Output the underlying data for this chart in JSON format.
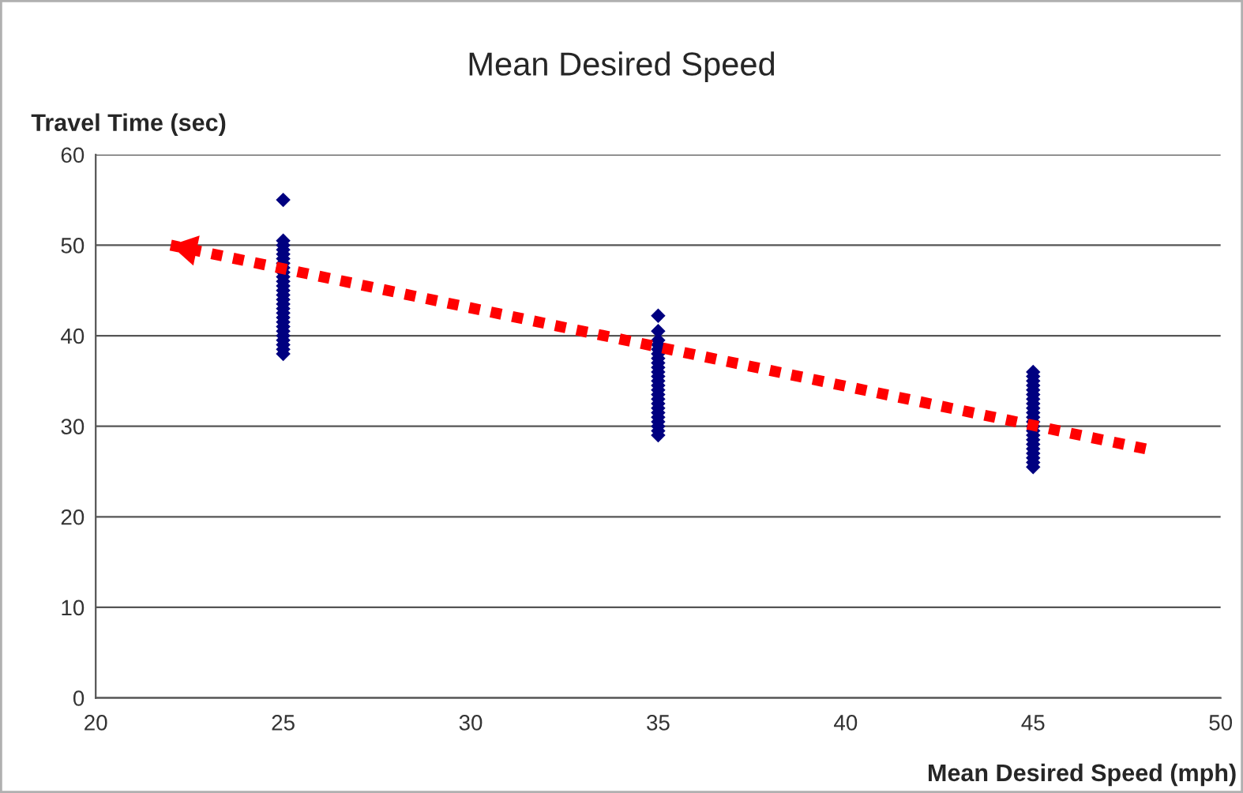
{
  "chart_data": {
    "type": "scatter",
    "title": "Mean Desired Speed",
    "xlabel": "Mean Desired Speed (mph)",
    "ylabel": "Travel Time (sec)",
    "xlim": [
      20,
      50
    ],
    "xticks": [
      20,
      25,
      30,
      35,
      40,
      45,
      50
    ],
    "ylim": [
      0,
      60
    ],
    "yticks": [
      0,
      10,
      20,
      30,
      40,
      50,
      60
    ],
    "grid": "y",
    "legend": false,
    "series": [
      {
        "color": "#000080",
        "marker": "diamond",
        "x": [
          25,
          25,
          25,
          25,
          25,
          25,
          25,
          25,
          25,
          25,
          25,
          25,
          25,
          25,
          25,
          25,
          25,
          25,
          25,
          25,
          25,
          25,
          25,
          25,
          25,
          25,
          25,
          35,
          35,
          35,
          35,
          35,
          35,
          35,
          35,
          35,
          35,
          35,
          35,
          35,
          35,
          35,
          35,
          35,
          35,
          35,
          35,
          35,
          35,
          35,
          35,
          45,
          45,
          45,
          45,
          45,
          45,
          45,
          45,
          45,
          45,
          45,
          45,
          45,
          45,
          45,
          45,
          45,
          45,
          45,
          45,
          45,
          45
        ],
        "values": [
          55,
          50.5,
          50,
          49.5,
          49,
          48.5,
          48,
          47.5,
          47,
          46.5,
          46,
          45.5,
          45,
          44.5,
          44,
          43.5,
          43,
          42.5,
          42,
          41.5,
          41,
          40.5,
          40,
          39.5,
          39,
          38.5,
          38,
          42.2,
          40.5,
          39.5,
          39,
          38.5,
          38,
          37.5,
          37,
          36.5,
          36,
          35.5,
          35,
          34.5,
          34,
          33.5,
          33,
          32.5,
          32,
          31.5,
          31,
          30.5,
          30,
          29.5,
          29,
          36,
          35.5,
          35,
          34.5,
          34,
          33.5,
          33,
          32.5,
          32,
          31.5,
          31,
          30.5,
          30,
          29.5,
          29,
          28.5,
          28,
          27.5,
          27,
          26.5,
          26,
          25.5
        ]
      },
      {
        "type": "line",
        "color": "#ff0000",
        "marker": "none",
        "line_style": "dotted",
        "x": [
          48,
          22
        ],
        "values": [
          27.5,
          50
        ]
      }
    ]
  }
}
